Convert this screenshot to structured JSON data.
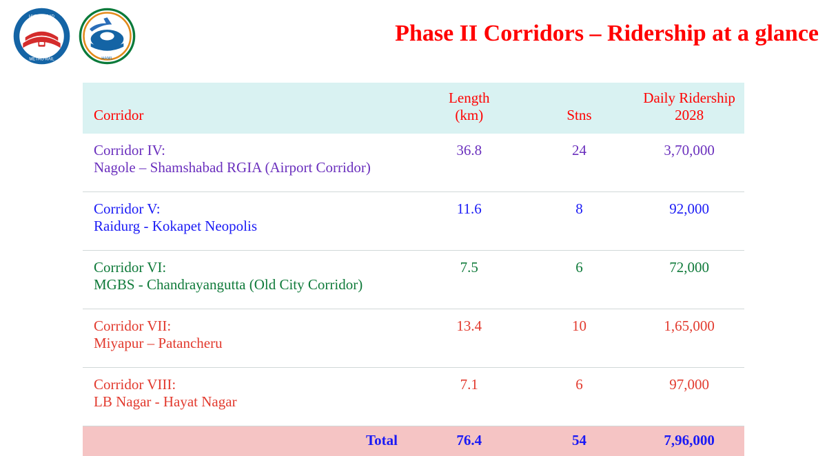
{
  "title": "Phase II Corridors – Ridership at a glance",
  "colors": {
    "title": "#ff0000",
    "headerBg": "#d9f2f2",
    "totalBg": "#f5c4c4",
    "totalText": "#1a1af5",
    "rowBorder": "#d0d8d8",
    "pageBg": "#ffffff"
  },
  "columns": {
    "corridor": "Corridor",
    "length": "Length (km)",
    "stns": "Stns",
    "ridership": "Daily Ridership 2028"
  },
  "rows": [
    {
      "head": "Corridor IV:",
      "sub": "Nagole – Shamshabad RGIA (Airport Corridor)",
      "length": "36.8",
      "stns": "24",
      "ridership": "3,70,000",
      "color": "#6a2fbd"
    },
    {
      "head": "Corridor V:",
      "sub": "Raidurg - Kokapet Neopolis",
      "length": "11.6",
      "stns": "8",
      "ridership": "92,000",
      "color": "#1a1af5"
    },
    {
      "head": "Corridor VI:",
      "sub": "MGBS - Chandrayangutta (Old City Corridor)",
      "length": "7.5",
      "stns": "6",
      "ridership": "72,000",
      "color": "#0f7a3a"
    },
    {
      "head": "Corridor VII:",
      "sub": "Miyapur – Patancheru",
      "length": "13.4",
      "stns": "10",
      "ridership": "1,65,000",
      "color": "#e23a2e"
    },
    {
      "head": "Corridor VIII:",
      "sub": "LB Nagar - Hayat Nagar",
      "length": "7.1",
      "stns": "6",
      "ridership": "97,000",
      "color": "#e23a2e"
    }
  ],
  "total": {
    "label": "Total",
    "length": "76.4",
    "stns": "54",
    "ridership": "7,96,000"
  },
  "logos": {
    "left": {
      "outer": "#1464a5",
      "train": "#d42c2c",
      "window": "#ffffff"
    },
    "right": {
      "ring1": "#0a7a3a",
      "ring2": "#e28a1a",
      "train": "#1464a5",
      "wing": "#2a6db8",
      "window": "#ffffff"
    }
  }
}
